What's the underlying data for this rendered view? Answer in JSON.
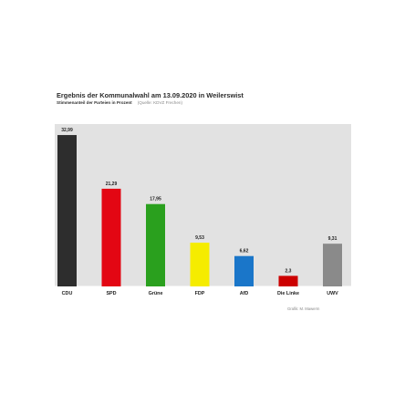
{
  "chart_data": {
    "type": "bar",
    "title": "Ergebnis der Kommunalwahl am 13.09.2020 in Weilerswist",
    "subtitle": "Stimmenanteil der Parteien in Prozent",
    "source": "(Quelle: KDVZ Frechen)",
    "credit": "Grafik: M. Mawerm",
    "categories": [
      "CDU",
      "SPD",
      "Grüne",
      "FDP",
      "AfD",
      "Die Linke",
      "UWV"
    ],
    "values": [
      32.99,
      21.29,
      17.95,
      9.53,
      6.62,
      2.3,
      9.31
    ],
    "value_labels": [
      "32,99",
      "21,29",
      "17,95",
      "9,53",
      "6,62",
      "2,3",
      "9,31"
    ],
    "colors": [
      "#2d2d2d",
      "#e30613",
      "#2aa01e",
      "#f5ec00",
      "#1a76c9",
      "#cc0000",
      "#8a8a8a"
    ],
    "ylim": [
      0,
      33
    ],
    "background": "#e2e2e2",
    "xlabel": "",
    "ylabel": "",
    "grid": false,
    "legend": "none"
  }
}
